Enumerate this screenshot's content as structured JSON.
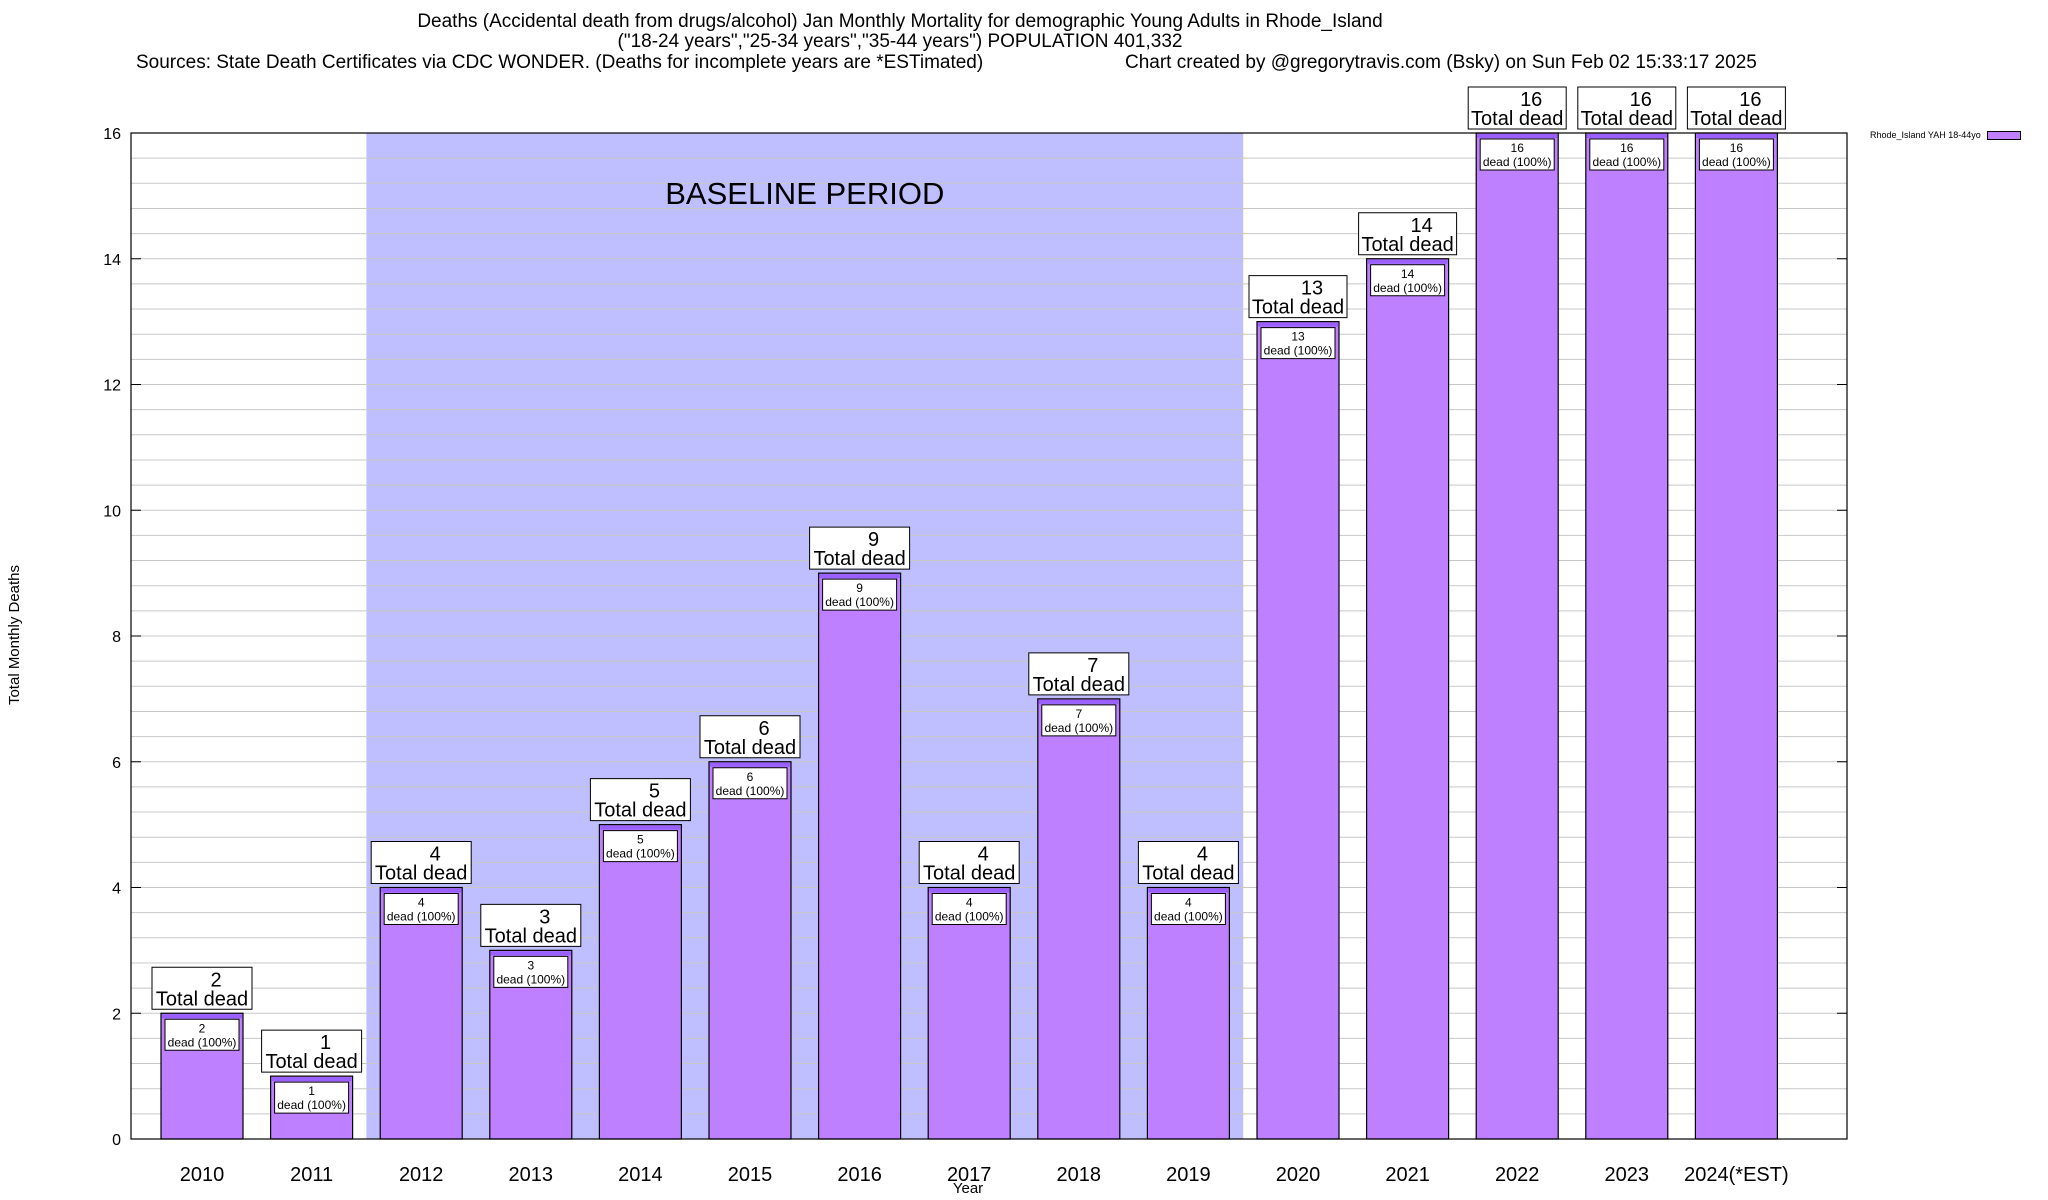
{
  "title_line1": "Deaths (Accidental death from drugs/alcohol) Jan Monthly Mortality for demographic Young Adults in Rhode_Island",
  "title_line2": "(\"18-24 years\",\"25-34 years\",\"35-44 years\") POPULATION 401,332",
  "sources": "Sources: State Death Certificates via CDC WONDER. (Deaths for incomplete years are *ESTimated)",
  "credit": "Chart created by @gregorytravis.com (Bsky) on Sun Feb 02 15:33:17 2025",
  "colors": {
    "bar": "#bf80ff",
    "baseline_band": "#bfbfff",
    "bar_top_stripe": "#9a60ff"
  },
  "chart_data": {
    "type": "bar",
    "xlabel": "Year",
    "ylabel": "Total Monthly Deaths",
    "ylim": [
      0,
      16
    ],
    "yticks": [
      0,
      2,
      4,
      6,
      8,
      10,
      12,
      14,
      16
    ],
    "grid": true,
    "categories": [
      "2010",
      "2011",
      "2012",
      "2013",
      "2014",
      "2015",
      "2016",
      "2017",
      "2018",
      "2019",
      "2020",
      "2021",
      "2022",
      "2023",
      "2024(*EST)"
    ],
    "series": [
      {
        "name": "Rhode_Island YAH 18-44yo",
        "values": [
          2,
          1,
          4,
          3,
          5,
          6,
          9,
          4,
          7,
          4,
          13,
          14,
          16,
          16,
          16
        ]
      }
    ],
    "total_label": "Total dead",
    "inner_label": "dead (100%)",
    "baseline_period": {
      "label": "BASELINE PERIOD",
      "from": "2012",
      "to": "2019"
    },
    "legend": "top-right outside"
  }
}
